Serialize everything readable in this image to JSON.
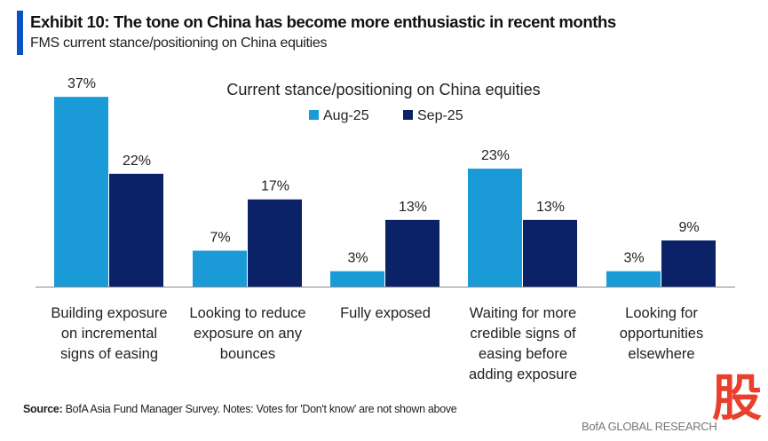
{
  "header": {
    "title": "Exhibit 10: The tone on China has become more enthusiastic in recent months",
    "subtitle": "FMS current stance/positioning on China equities"
  },
  "chart_data": {
    "type": "bar",
    "title": "Current stance/positioning on China equities",
    "categories": [
      [
        "Building exposure",
        "on incremental",
        "signs of easing"
      ],
      [
        "Looking to reduce",
        "exposure on any",
        "bounces"
      ],
      [
        "Fully exposed"
      ],
      [
        "Waiting for more",
        "credible signs of",
        "easing before",
        "adding exposure"
      ],
      [
        "Looking for",
        "opportunities",
        "elsewhere"
      ]
    ],
    "series": [
      {
        "name": "Aug-25",
        "color": "#1a9ad6",
        "values": [
          37,
          7,
          3,
          23,
          3
        ]
      },
      {
        "name": "Sep-25",
        "color": "#0b2366",
        "values": [
          22,
          17,
          13,
          13,
          9
        ]
      }
    ],
    "value_suffix": "%",
    "ylim": [
      0,
      40
    ],
    "grid": false,
    "legend": "top-center"
  },
  "footer": {
    "source_label": "Source:",
    "source_text": " BofA Asia Fund Manager Survey. Notes: Votes for 'Don't know' are not shown above",
    "brand": "BofA GLOBAL RESEARCH",
    "watermark": "股"
  }
}
